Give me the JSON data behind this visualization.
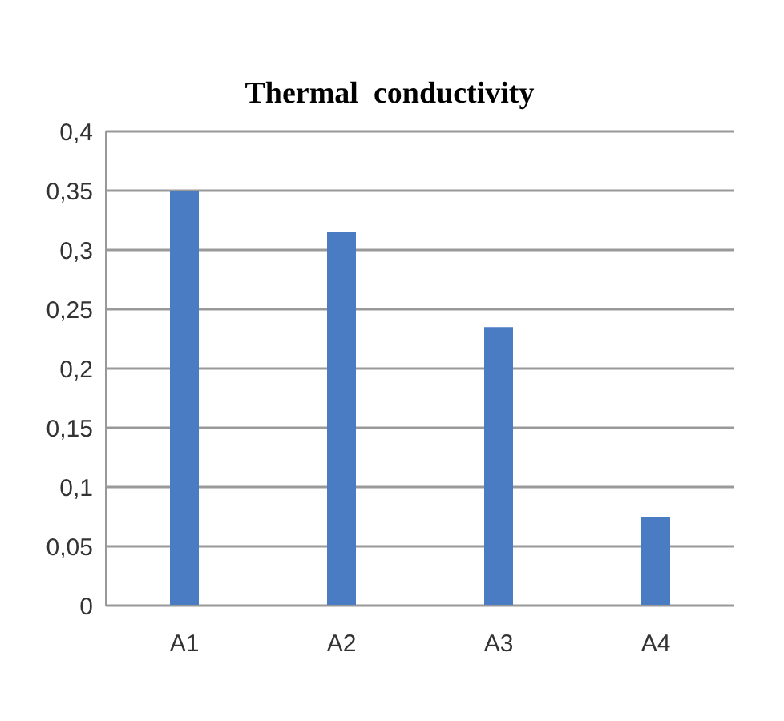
{
  "chart_data": {
    "type": "bar",
    "title": "Thermal  conductivity",
    "categories": [
      "A1",
      "A2",
      "A3",
      "A4"
    ],
    "values": [
      0.35,
      0.315,
      0.235,
      0.075
    ],
    "color": "#4a7cc4",
    "ylim": [
      0,
      0.4
    ],
    "yticks": [
      0,
      {
        "value": 0.05,
        "label": "0,05"
      },
      {
        "value": 0.1,
        "label": "0,1"
      },
      {
        "value": 0.15,
        "label": "0,15"
      },
      {
        "value": 0.2,
        "label": "0,2"
      },
      {
        "value": 0.25,
        "label": "0,25"
      },
      {
        "value": 0.3,
        "label": "0,3"
      },
      {
        "value": 0.35,
        "label": "0,35"
      },
      {
        "value": 0.4,
        "label": "0,4"
      }
    ],
    "grid": "y"
  }
}
